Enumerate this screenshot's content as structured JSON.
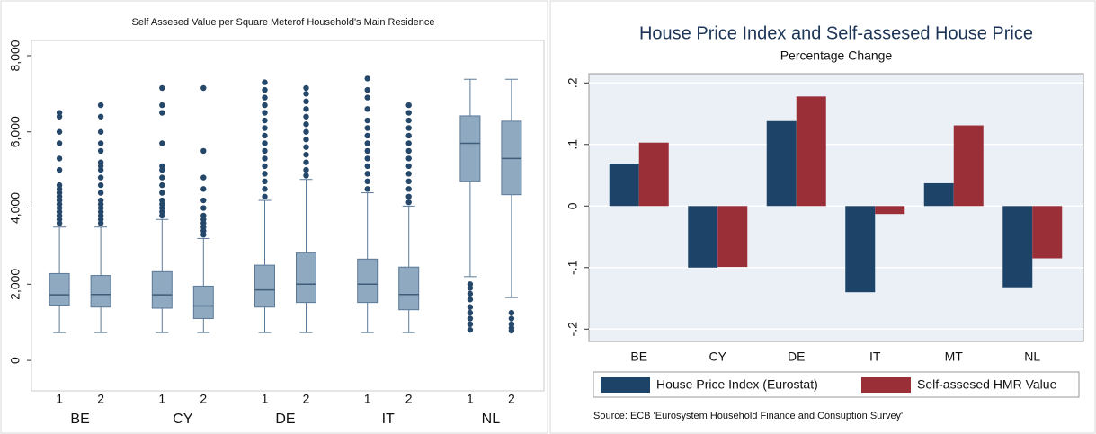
{
  "chart_data": [
    {
      "type": "box",
      "title": "Self Assesed Value per Square Meterof Household's Main Residence",
      "categories": [
        "BE",
        "CY",
        "DE",
        "IT",
        "NL"
      ],
      "series": [
        {
          "name": "1",
          "color": "#8fa9c0",
          "whisker_low": [
            730,
            730,
            730,
            730,
            2200
          ],
          "q1": [
            1450,
            1370,
            1400,
            1520,
            4700
          ],
          "median": [
            1720,
            1720,
            1850,
            2000,
            5700
          ],
          "q3": [
            2280,
            2330,
            2500,
            2660,
            6420
          ],
          "whisker_high": [
            3500,
            3700,
            4200,
            4400,
            7380
          ],
          "outliers": [
            [
              3600,
              3700,
              3800,
              3900,
              4000,
              4100,
              4200,
              4300,
              4400,
              4500,
              4600,
              5000,
              5300,
              5700,
              6000,
              6400,
              6500
            ],
            [
              3800,
              3900,
              4000,
              4100,
              4200,
              4400,
              4600,
              4800,
              5000,
              5100,
              5700,
              6500,
              6700,
              7150
            ],
            [
              4300,
              4500,
              4700,
              4900,
              5100,
              5300,
              5500,
              5700,
              5900,
              6100,
              6300,
              6500,
              6700,
              6900,
              7100,
              7300
            ],
            [
              4500,
              4700,
              4900,
              5100,
              5300,
              5500,
              5700,
              5900,
              6100,
              6300,
              6600,
              6900,
              7100,
              7400
            ],
            [
              800,
              950,
              1100,
              1250,
              1400,
              1600,
              1750,
              1900,
              2000
            ]
          ]
        },
        {
          "name": "2",
          "color": "#8fa9c0",
          "whisker_low": [
            730,
            730,
            730,
            730,
            1650
          ],
          "q1": [
            1400,
            1100,
            1520,
            1330,
            4350
          ],
          "median": [
            1730,
            1430,
            2000,
            1730,
            5300
          ],
          "q3": [
            2230,
            1950,
            2830,
            2450,
            6280
          ],
          "whisker_high": [
            3500,
            3200,
            4750,
            4050,
            7380
          ],
          "outliers": [
            [
              3600,
              3700,
              3800,
              3900,
              4000,
              4100,
              4200,
              4400,
              4600,
              4800,
              5000,
              5100,
              5200,
              5500,
              5700,
              6000,
              6400,
              6700
            ],
            [
              3300,
              3400,
              3500,
              3600,
              3700,
              3800,
              4000,
              4200,
              4500,
              4800,
              5500,
              7150
            ],
            [
              4850,
              5000,
              5200,
              5400,
              5600,
              5800,
              6000,
              6200,
              6400,
              6600,
              6800,
              7000,
              7150
            ],
            [
              4150,
              4300,
              4500,
              4700,
              4900,
              5100,
              5300,
              5500,
              5700,
              5900,
              6100,
              6300,
              6500,
              6700
            ],
            [
              780,
              850,
              950,
              1100,
              1250
            ]
          ]
        }
      ],
      "outlier_color": "#25476a",
      "ylim": [
        -800,
        8400
      ],
      "yticks": [
        0,
        {
          "value": 2000,
          "label": "2,000"
        },
        {
          "value": 4000,
          "label": "4,000"
        },
        {
          "value": 6000,
          "label": "6,000"
        },
        {
          "value": 8000,
          "label": "8,000"
        }
      ]
    },
    {
      "type": "bar",
      "title": "House Price Index and Self-assesed House Price",
      "subtitle": "Percentage Change",
      "categories": [
        "BE",
        "CY",
        "DE",
        "IT",
        "MT",
        "NL"
      ],
      "series": [
        {
          "name": "House Price Index (Eurostat)",
          "color": "#1d4468",
          "values": [
            0.069,
            -0.1,
            0.138,
            -0.14,
            0.037,
            -0.132
          ]
        },
        {
          "name": "Self-assesed HMR Value",
          "color": "#9a2f38",
          "values": [
            0.103,
            -0.099,
            0.178,
            -0.013,
            0.131,
            -0.085
          ]
        }
      ],
      "ylim": [
        -0.22,
        0.215
      ],
      "yticks": [
        {
          "value": -0.2,
          "label": "-.2"
        },
        {
          "value": -0.1,
          "label": "-.1"
        },
        0,
        {
          "value": 0.1,
          "label": ".1"
        },
        {
          "value": 0.2,
          "label": ".2"
        }
      ],
      "grid": true,
      "legend": "bottom",
      "note": "Source: ECB 'Eurosystem Household Finance and Consuption Survey'"
    }
  ]
}
